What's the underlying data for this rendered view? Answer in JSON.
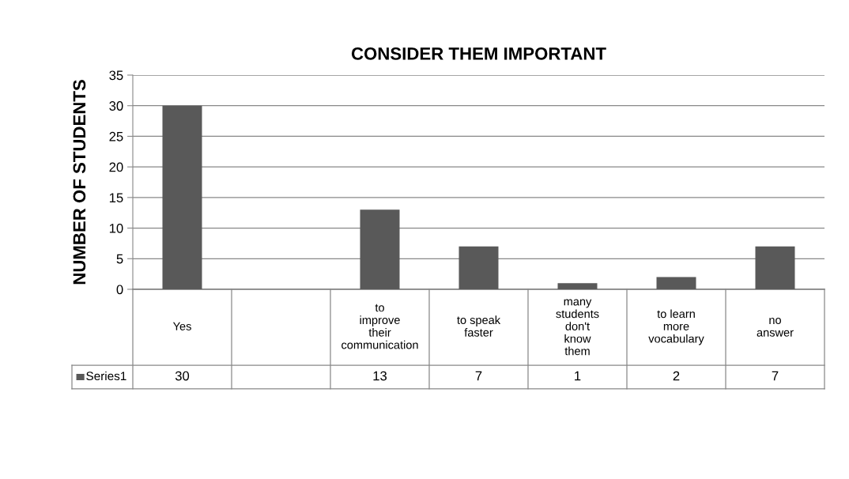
{
  "chart_data": {
    "type": "bar",
    "title": "CONSIDER THEM IMPORTANT",
    "ylabel": "NUMBER OF STUDENTS",
    "categories": [
      "Yes",
      null,
      "to\nimprove\ntheir\ncommunication",
      "to speak\nfaster",
      "many\nstudents\ndon't\nknow\nthem",
      "to learn\nmore\nvocabulary",
      "no\nanswer"
    ],
    "series": [
      {
        "name": "Series1",
        "color": "#595959",
        "values": [
          30,
          null,
          13,
          7,
          1,
          2,
          7
        ]
      }
    ],
    "ylim": [
      0,
      35
    ],
    "yticks": [
      0,
      5,
      10,
      15,
      20,
      25,
      30,
      35
    ],
    "grid": "y",
    "legend": "bottom",
    "data_labels": true
  }
}
